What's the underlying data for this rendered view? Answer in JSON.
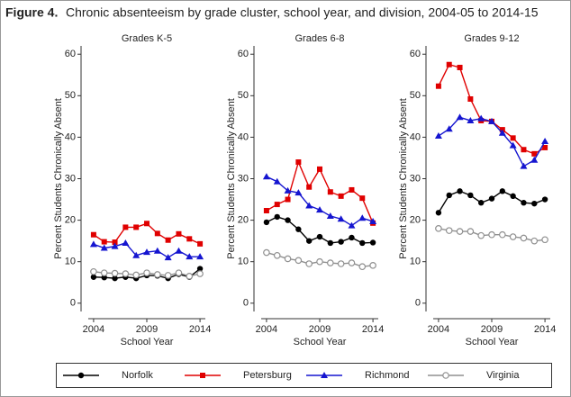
{
  "figure_label": "Figure 4.",
  "title": "Chronic absenteeism by grade cluster, school year, and division, 2004-05 to 2014-15",
  "chart_data": [
    {
      "type": "line",
      "title": "Grades K-5",
      "xlabel": "School Year",
      "ylabel": "Percent Students Chronically Absent",
      "x": [
        2004,
        2005,
        2006,
        2007,
        2008,
        2009,
        2010,
        2011,
        2012,
        2013,
        2014
      ],
      "xlim": [
        2003.5,
        2014.5
      ],
      "xticks": [
        2004,
        2009,
        2014
      ],
      "ylim": [
        -2,
        62
      ],
      "yticks": [
        0,
        10,
        20,
        30,
        40,
        50,
        60
      ],
      "grid": false,
      "series": [
        {
          "name": "Norfolk",
          "color": "#000000",
          "marker": "circle",
          "values": [
            6.3,
            6.2,
            6.0,
            6.3,
            6.0,
            6.7,
            6.6,
            6.0,
            7.0,
            6.3,
            8.3
          ]
        },
        {
          "name": "Petersburg",
          "color": "#e00000",
          "marker": "square",
          "values": [
            16.5,
            14.8,
            14.7,
            18.3,
            18.3,
            19.2,
            16.8,
            15.2,
            16.7,
            15.5,
            14.3
          ]
        },
        {
          "name": "Richmond",
          "color": "#1515d0",
          "marker": "triangle",
          "values": [
            14.2,
            13.3,
            13.7,
            14.5,
            11.5,
            12.3,
            12.6,
            11.0,
            12.6,
            11.2,
            11.2
          ]
        },
        {
          "name": "Virginia",
          "color": "#909090",
          "marker": "hollow-circle",
          "values": [
            7.6,
            7.3,
            7.2,
            7.1,
            6.8,
            7.3,
            6.9,
            6.7,
            7.3,
            6.5,
            7.1
          ]
        }
      ]
    },
    {
      "type": "line",
      "title": "Grades 6-8",
      "xlabel": "School Year",
      "ylabel": "Percent Students Chronically Absent",
      "x": [
        2004,
        2005,
        2006,
        2007,
        2008,
        2009,
        2010,
        2011,
        2012,
        2013,
        2014
      ],
      "xlim": [
        2003.5,
        2014.5
      ],
      "xticks": [
        2004,
        2009,
        2014
      ],
      "ylim": [
        -2,
        62
      ],
      "yticks": [
        0,
        10,
        20,
        30,
        40,
        50,
        60
      ],
      "grid": false,
      "series": [
        {
          "name": "Norfolk",
          "color": "#000000",
          "marker": "circle",
          "values": [
            19.5,
            20.8,
            20.0,
            17.8,
            15.0,
            16.0,
            14.5,
            14.8,
            15.8,
            14.5,
            14.6
          ]
        },
        {
          "name": "Petersburg",
          "color": "#e00000",
          "marker": "square",
          "values": [
            22.3,
            23.8,
            25.0,
            34.0,
            28.0,
            32.3,
            26.8,
            25.8,
            27.3,
            25.3,
            19.3
          ]
        },
        {
          "name": "Richmond",
          "color": "#1515d0",
          "marker": "triangle",
          "values": [
            30.5,
            29.3,
            27.1,
            26.6,
            23.5,
            22.5,
            21.0,
            20.3,
            18.7,
            20.5,
            19.7
          ]
        },
        {
          "name": "Virginia",
          "color": "#909090",
          "marker": "hollow-circle",
          "values": [
            12.2,
            11.5,
            10.7,
            10.3,
            9.5,
            10.0,
            9.7,
            9.5,
            9.7,
            8.8,
            9.1
          ]
        }
      ]
    },
    {
      "type": "line",
      "title": "Grades 9-12",
      "xlabel": "School Year",
      "ylabel": "Percent Students Chronically Absent",
      "x": [
        2004,
        2005,
        2006,
        2007,
        2008,
        2009,
        2010,
        2011,
        2012,
        2013,
        2014
      ],
      "xlim": [
        2003.5,
        2014.5
      ],
      "xticks": [
        2004,
        2009,
        2014
      ],
      "ylim": [
        -2,
        62
      ],
      "yticks": [
        0,
        10,
        20,
        30,
        40,
        50,
        60
      ],
      "grid": false,
      "series": [
        {
          "name": "Norfolk",
          "color": "#000000",
          "marker": "circle",
          "values": [
            21.8,
            26.0,
            27.0,
            26.0,
            24.2,
            25.2,
            27.0,
            25.8,
            24.2,
            24.0,
            25.0
          ]
        },
        {
          "name": "Petersburg",
          "color": "#e00000",
          "marker": "square",
          "values": [
            52.3,
            57.5,
            56.8,
            49.2,
            44.0,
            43.8,
            41.8,
            39.8,
            37.0,
            36.0,
            37.5
          ]
        },
        {
          "name": "Richmond",
          "color": "#1515d0",
          "marker": "triangle",
          "values": [
            40.3,
            42.0,
            44.8,
            44.0,
            44.5,
            43.8,
            41.0,
            38.0,
            33.0,
            34.5,
            39.0
          ]
        },
        {
          "name": "Virginia",
          "color": "#909090",
          "marker": "hollow-circle",
          "values": [
            18.0,
            17.5,
            17.3,
            17.3,
            16.3,
            16.5,
            16.5,
            16.0,
            15.7,
            15.0,
            15.3
          ]
        }
      ]
    }
  ]
}
